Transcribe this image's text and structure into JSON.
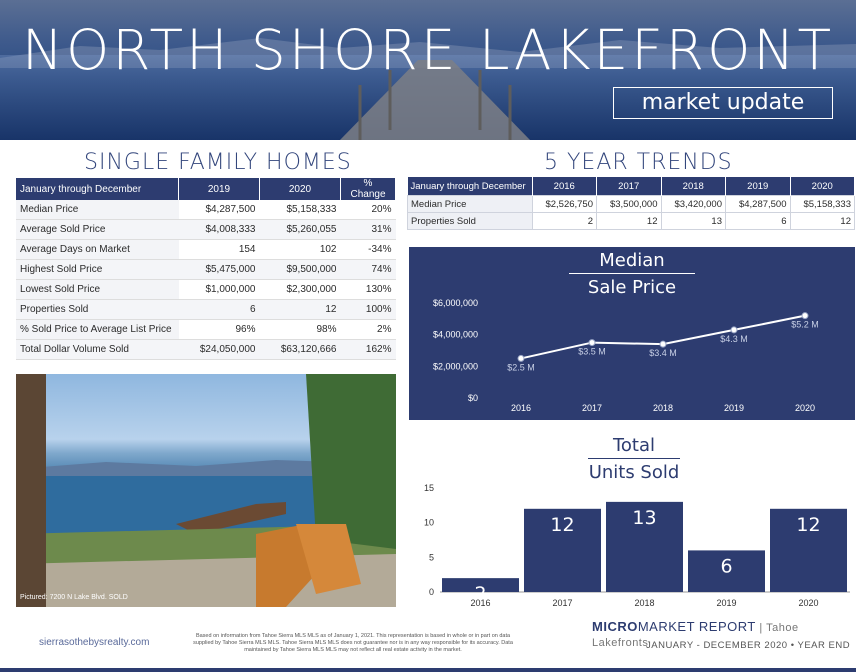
{
  "hero": {
    "title": "NORTH SHORE LAKEFRONT",
    "subtitle": "market update"
  },
  "sfh": {
    "title": "SINGLE FAMILY HOMES",
    "headers": [
      "January through December",
      "2019",
      "2020",
      "% Change"
    ],
    "rows": [
      [
        "Median Price",
        "$4,287,500",
        "$5,158,333",
        "20%"
      ],
      [
        "Average Sold Price",
        "$4,008,333",
        "$5,260,055",
        "31%"
      ],
      [
        "Average Days on Market",
        "154",
        "102",
        "-34%"
      ],
      [
        "Highest Sold Price",
        "$5,475,000",
        "$9,500,000",
        "74%"
      ],
      [
        "Lowest Sold Price",
        "$1,000,000",
        "$2,300,000",
        "130%"
      ],
      [
        "Properties Sold",
        "6",
        "12",
        "100%"
      ],
      [
        "% Sold Price to Average List Price",
        "96%",
        "98%",
        "2%"
      ],
      [
        "Total Dollar Volume Sold",
        "$24,050,000",
        "$63,120,666",
        "162%"
      ]
    ]
  },
  "trends": {
    "title": "5 YEAR TRENDS",
    "headers": [
      "January through December",
      "2016",
      "2017",
      "2018",
      "2019",
      "2020"
    ],
    "rows": [
      [
        "Median Price",
        "$2,526,750",
        "$3,500,000",
        "$3,420,000",
        "$4,287,500",
        "$5,158,333"
      ],
      [
        "Properties Sold",
        "2",
        "12",
        "13",
        "6",
        "12"
      ]
    ]
  },
  "photo": {
    "caption": "Pictured: 7200 N Lake Blvd. SOLD"
  },
  "chart_data": [
    {
      "type": "line",
      "title": "Median Sale Price",
      "title_lines": [
        "Median",
        "Sale Price"
      ],
      "x": [
        "2016",
        "2017",
        "2018",
        "2019",
        "2020"
      ],
      "values": [
        2.5,
        3.5,
        3.4,
        4.3,
        5.2
      ],
      "data_labels": [
        "$2.5 M",
        "$3.5 M",
        "$3.4 M",
        "$4.3 M",
        "$5.2 M"
      ],
      "yticks": [
        "$0",
        "$2,000,000",
        "$4,000,000",
        "$6,000,000"
      ],
      "ylim": [
        0,
        6
      ],
      "colors": {
        "background": "#2d3c70",
        "line": "#ffffff"
      }
    },
    {
      "type": "bar",
      "title": "Total Units Sold",
      "title_lines": [
        "Total",
        "Units Sold"
      ],
      "categories": [
        "2016",
        "2017",
        "2018",
        "2019",
        "2020"
      ],
      "values": [
        2,
        12,
        13,
        6,
        12
      ],
      "yticks": [
        "0",
        "5",
        "10",
        "15"
      ],
      "ylim": [
        0,
        15
      ],
      "colors": {
        "bar": "#2d3c70"
      }
    }
  ],
  "footer": {
    "site": "sierrasothebysrealty.com",
    "note": "Based on information from Tahoe Sierra MLS MLS as of January 1, 2021. This representation is based in whole or in part on data supplied by Tahoe Sierra MLS MLS. Tahoe Sierra MLS MLS does not guarantee nor is in any way responsible for its accuracy. Data maintained by Tahoe Sierra MLS MLS may not reflect all real estate activity in the market.",
    "brand_bold": "MICRO",
    "brand_rest": "MARKET REPORT",
    "brand_sep": " | ",
    "brand_area": "Tahoe Lakefronts",
    "date": "JANUARY - DECEMBER 2020 • YEAR END"
  }
}
